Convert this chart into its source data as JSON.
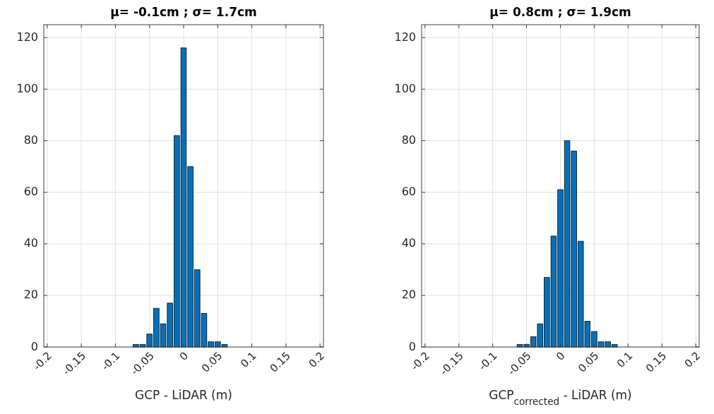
{
  "chart_data": [
    {
      "type": "histogram",
      "title": "μ= -0.1cm ; σ=  1.7cm",
      "xlabel": "GCP - LiDAR (m)",
      "color": "#0072bd",
      "bins": [
        -0.205,
        -0.195,
        -0.185,
        -0.175,
        -0.165,
        -0.155,
        -0.145,
        -0.135,
        -0.125,
        -0.115,
        -0.105,
        -0.095,
        -0.085,
        -0.075,
        -0.065,
        -0.055,
        -0.045,
        -0.035,
        -0.025,
        -0.015,
        -0.005,
        0.005,
        0.015,
        0.025,
        0.035,
        0.045,
        0.055,
        0.065,
        0.075,
        0.085,
        0.095,
        0.105,
        0.115,
        0.125,
        0.135,
        0.145,
        0.155,
        0.165,
        0.175,
        0.185,
        0.195,
        0.205
      ],
      "values": [
        0,
        0,
        0,
        0,
        0,
        0,
        0,
        0,
        0,
        0,
        0,
        0,
        0,
        1,
        1,
        5,
        15,
        9,
        17,
        82,
        116,
        70,
        30,
        13,
        2,
        2,
        1,
        0,
        0,
        0,
        0,
        0,
        0,
        0,
        0,
        0,
        0,
        0,
        0,
        0,
        0
      ],
      "xlim": [
        -0.205,
        0.205
      ],
      "xticks": [
        -0.2,
        -0.15,
        -0.1,
        -0.05,
        0,
        0.05,
        0.1,
        0.15,
        0.2
      ],
      "ylim": [
        0,
        125
      ],
      "yticks": [
        0,
        20,
        40,
        60,
        80,
        100,
        120
      ],
      "grid": true
    },
    {
      "type": "histogram",
      "title": "μ=  0.8cm ; σ=  1.9cm",
      "xlabel": "GCP$_{corrected}$ - LiDAR (m)",
      "color": "#0072bd",
      "bins": [
        -0.205,
        -0.195,
        -0.185,
        -0.175,
        -0.165,
        -0.155,
        -0.145,
        -0.135,
        -0.125,
        -0.115,
        -0.105,
        -0.095,
        -0.085,
        -0.075,
        -0.065,
        -0.055,
        -0.045,
        -0.035,
        -0.025,
        -0.015,
        -0.005,
        0.005,
        0.015,
        0.025,
        0.035,
        0.045,
        0.055,
        0.065,
        0.075,
        0.085,
        0.095,
        0.105,
        0.115,
        0.125,
        0.135,
        0.145,
        0.155,
        0.165,
        0.175,
        0.185,
        0.195,
        0.205
      ],
      "values": [
        0,
        0,
        0,
        0,
        0,
        0,
        0,
        0,
        0,
        0,
        0,
        0,
        0,
        0,
        1,
        1,
        4,
        9,
        27,
        43,
        61,
        80,
        76,
        41,
        10,
        6,
        2,
        2,
        1,
        0,
        0,
        0,
        0,
        0,
        0,
        0,
        0,
        0,
        0,
        0,
        0
      ],
      "xlim": [
        -0.205,
        0.205
      ],
      "xticks": [
        -0.2,
        -0.15,
        -0.1,
        -0.05,
        0,
        0.05,
        0.1,
        0.15,
        0.2
      ],
      "ylim": [
        0,
        125
      ],
      "yticks": [
        0,
        20,
        40,
        60,
        80,
        100,
        120
      ],
      "grid": true
    }
  ]
}
